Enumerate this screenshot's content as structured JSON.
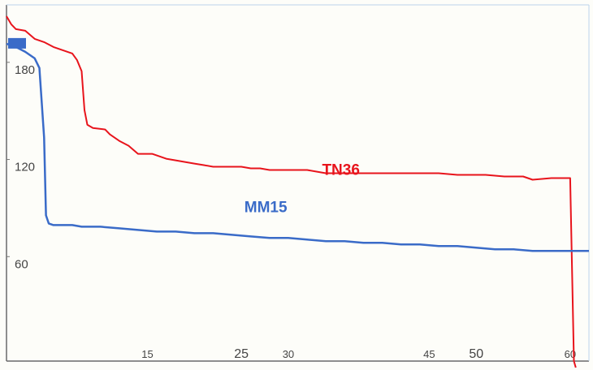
{
  "chart_data": {
    "type": "line",
    "title": "",
    "xlabel": "",
    "ylabel": "",
    "xlim": [
      0,
      62
    ],
    "ylim": [
      0,
      220
    ],
    "grid": false,
    "legend": "none",
    "y_ticks": [
      {
        "value": 180,
        "label": "180"
      },
      {
        "value": 120,
        "label": "120"
      },
      {
        "value": 60,
        "label": "60"
      }
    ],
    "x_ticks": [
      {
        "value": 15,
        "label": "15"
      },
      {
        "value": 25,
        "label": "25"
      },
      {
        "value": 30,
        "label": "30"
      },
      {
        "value": 45,
        "label": "45"
      },
      {
        "value": 50,
        "label": "50"
      },
      {
        "value": 60,
        "label": "60"
      }
    ],
    "series": [
      {
        "name": "TN36",
        "color": "#e8141c",
        "label_at": {
          "x": 35.6,
          "y": 115
        },
        "points": [
          [
            0,
            213
          ],
          [
            0.5,
            208
          ],
          [
            1,
            205
          ],
          [
            2,
            204
          ],
          [
            3,
            199
          ],
          [
            4,
            197
          ],
          [
            5,
            194
          ],
          [
            6,
            192
          ],
          [
            7,
            190
          ],
          [
            7.5,
            186
          ],
          [
            8,
            179
          ],
          [
            8.3,
            155
          ],
          [
            8.6,
            146
          ],
          [
            9.2,
            144
          ],
          [
            10.5,
            143
          ],
          [
            11,
            140
          ],
          [
            12,
            136
          ],
          [
            13,
            133
          ],
          [
            14,
            128
          ],
          [
            15.5,
            128
          ],
          [
            17,
            125
          ],
          [
            18,
            124
          ],
          [
            19,
            123
          ],
          [
            20,
            122
          ],
          [
            21,
            121
          ],
          [
            22,
            120
          ],
          [
            24,
            120
          ],
          [
            25,
            120
          ],
          [
            26,
            119
          ],
          [
            27,
            119
          ],
          [
            28,
            118
          ],
          [
            30,
            118
          ],
          [
            32,
            118
          ],
          [
            33,
            117
          ],
          [
            34,
            116
          ],
          [
            36,
            116
          ],
          [
            38,
            116
          ],
          [
            40,
            116
          ],
          [
            42,
            116
          ],
          [
            44,
            116
          ],
          [
            46,
            116
          ],
          [
            48,
            115
          ],
          [
            50,
            115
          ],
          [
            51,
            115
          ],
          [
            53,
            114
          ],
          [
            55,
            114
          ],
          [
            56,
            112
          ],
          [
            58,
            113
          ],
          [
            60,
            113
          ],
          [
            60.4,
            0
          ],
          [
            60.6,
            -10
          ]
        ]
      },
      {
        "name": "MM15",
        "color": "#3a6bc8",
        "label_at": {
          "x": 27.6,
          "y": 92
        },
        "points": [
          [
            0,
            196
          ],
          [
            0.5,
            195
          ],
          [
            1,
            194
          ],
          [
            2,
            191
          ],
          [
            3,
            187
          ],
          [
            3.5,
            181
          ],
          [
            4,
            138
          ],
          [
            4.2,
            90
          ],
          [
            4.5,
            85
          ],
          [
            5,
            84
          ],
          [
            6,
            84
          ],
          [
            7,
            84
          ],
          [
            8,
            83
          ],
          [
            10,
            83
          ],
          [
            12,
            82
          ],
          [
            14,
            81
          ],
          [
            16,
            80
          ],
          [
            18,
            80
          ],
          [
            20,
            79
          ],
          [
            22,
            79
          ],
          [
            24,
            78
          ],
          [
            26,
            77
          ],
          [
            28,
            76
          ],
          [
            30,
            76
          ],
          [
            32,
            75
          ],
          [
            34,
            74
          ],
          [
            36,
            74
          ],
          [
            38,
            73
          ],
          [
            40,
            73
          ],
          [
            42,
            72
          ],
          [
            44,
            72
          ],
          [
            46,
            71
          ],
          [
            48,
            71
          ],
          [
            50,
            70
          ],
          [
            52,
            69
          ],
          [
            54,
            69
          ],
          [
            56,
            68
          ],
          [
            58,
            68
          ],
          [
            60,
            68
          ],
          [
            62,
            68
          ]
        ]
      }
    ]
  }
}
